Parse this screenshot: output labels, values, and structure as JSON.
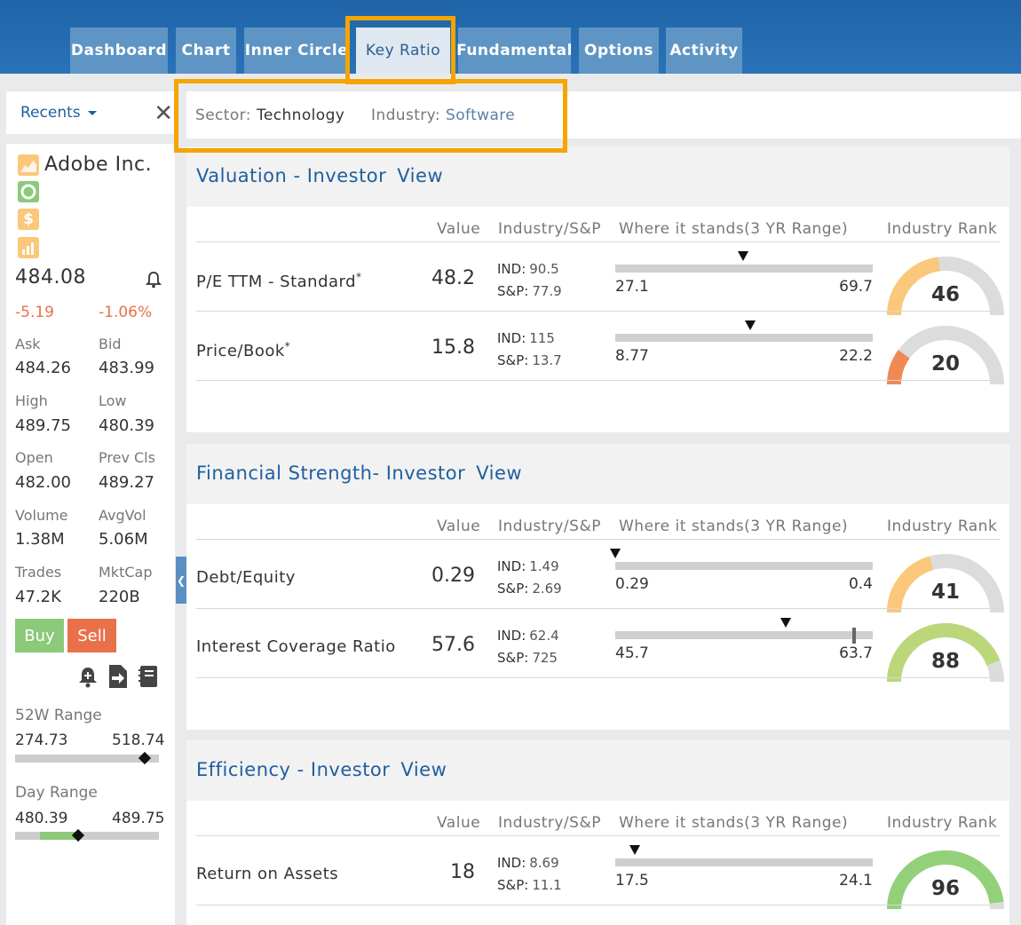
{
  "tabs": [
    "Dashboard",
    "Chart",
    "Inner Circle",
    "Key Ratio",
    "Fundamental",
    "Options",
    "Activity"
  ],
  "recents": {
    "label": "Recents",
    "close": "✕"
  },
  "sector": {
    "sector_label": "Sector:",
    "sector_value": "Technology",
    "industry_label": "Industry:",
    "industry_value": "Software"
  },
  "stock": {
    "name": "Adobe Inc.",
    "price": "484.08",
    "change": "-5.19",
    "change_pct": "-1.06%",
    "stats": [
      {
        "label": "Ask",
        "value": "484.26"
      },
      {
        "label": "Bid",
        "value": "483.99"
      },
      {
        "label": "High",
        "value": "489.75"
      },
      {
        "label": "Low",
        "value": "480.39"
      },
      {
        "label": "Open",
        "value": "482.00"
      },
      {
        "label": "Prev Cls",
        "value": "489.27"
      },
      {
        "label": "Volume",
        "value": "1.38M"
      },
      {
        "label": "AvgVol",
        "value": "5.06M"
      },
      {
        "label": "Trades",
        "value": "47.2K"
      },
      {
        "label": "MktCap",
        "value": "220B"
      }
    ],
    "buy": "Buy",
    "sell": "Sell",
    "range52": {
      "label": "52W Range",
      "low": "274.73",
      "high": "518.74",
      "position": 0.9
    },
    "day_range": {
      "label": "Day Range",
      "low": "480.39",
      "high": "489.75",
      "position": 0.44
    }
  },
  "columns": {
    "value": "Value",
    "industry": "Industry/S&P",
    "where": "Where it stands(3 YR Range)",
    "rank": "Industry Rank"
  },
  "sections": [
    {
      "title": "Valuation -  Investor",
      "view": "View",
      "rows": [
        {
          "name": "P/E TTM - Standard",
          "asterisk": "*",
          "value": "48.2",
          "ind": "90.5",
          "sp": "77.9",
          "low": "27.1",
          "high": "69.7",
          "rank": 46,
          "gauge_color": "#fbc77a"
        },
        {
          "name": "Price/Book",
          "asterisk": "*",
          "value": "15.8",
          "ind": "115",
          "sp": "13.7",
          "low": "8.77",
          "high": "22.2",
          "rank": 20,
          "gauge_color": "#ef8a54"
        }
      ]
    },
    {
      "title": "Financial Strength- Investor",
      "view": "View",
      "rows": [
        {
          "name": "Debt/Equity",
          "asterisk": "",
          "value": "0.29",
          "ind": "1.49",
          "sp": "2.69",
          "low": "0.29",
          "high": "0.4",
          "rank": 41,
          "gauge_color": "#fbc77a"
        },
        {
          "name": "Interest Coverage Ratio",
          "asterisk": "",
          "value": "57.6",
          "ind": "62.4",
          "sp": "725",
          "low": "45.7",
          "high": "63.7",
          "rank": 88,
          "gauge_color": "#bcd77a"
        }
      ]
    },
    {
      "title": "Efficiency - Investor",
      "view": "View",
      "rows": [
        {
          "name": "Return on Assets",
          "asterisk": "",
          "value": "18",
          "ind": "8.69",
          "sp": "11.1",
          "low": "17.5",
          "high": "24.1",
          "rank": 96,
          "gauge_color": "#93d07a"
        }
      ]
    }
  ],
  "ind_label": "IND:",
  "sp_label": "S&P:"
}
